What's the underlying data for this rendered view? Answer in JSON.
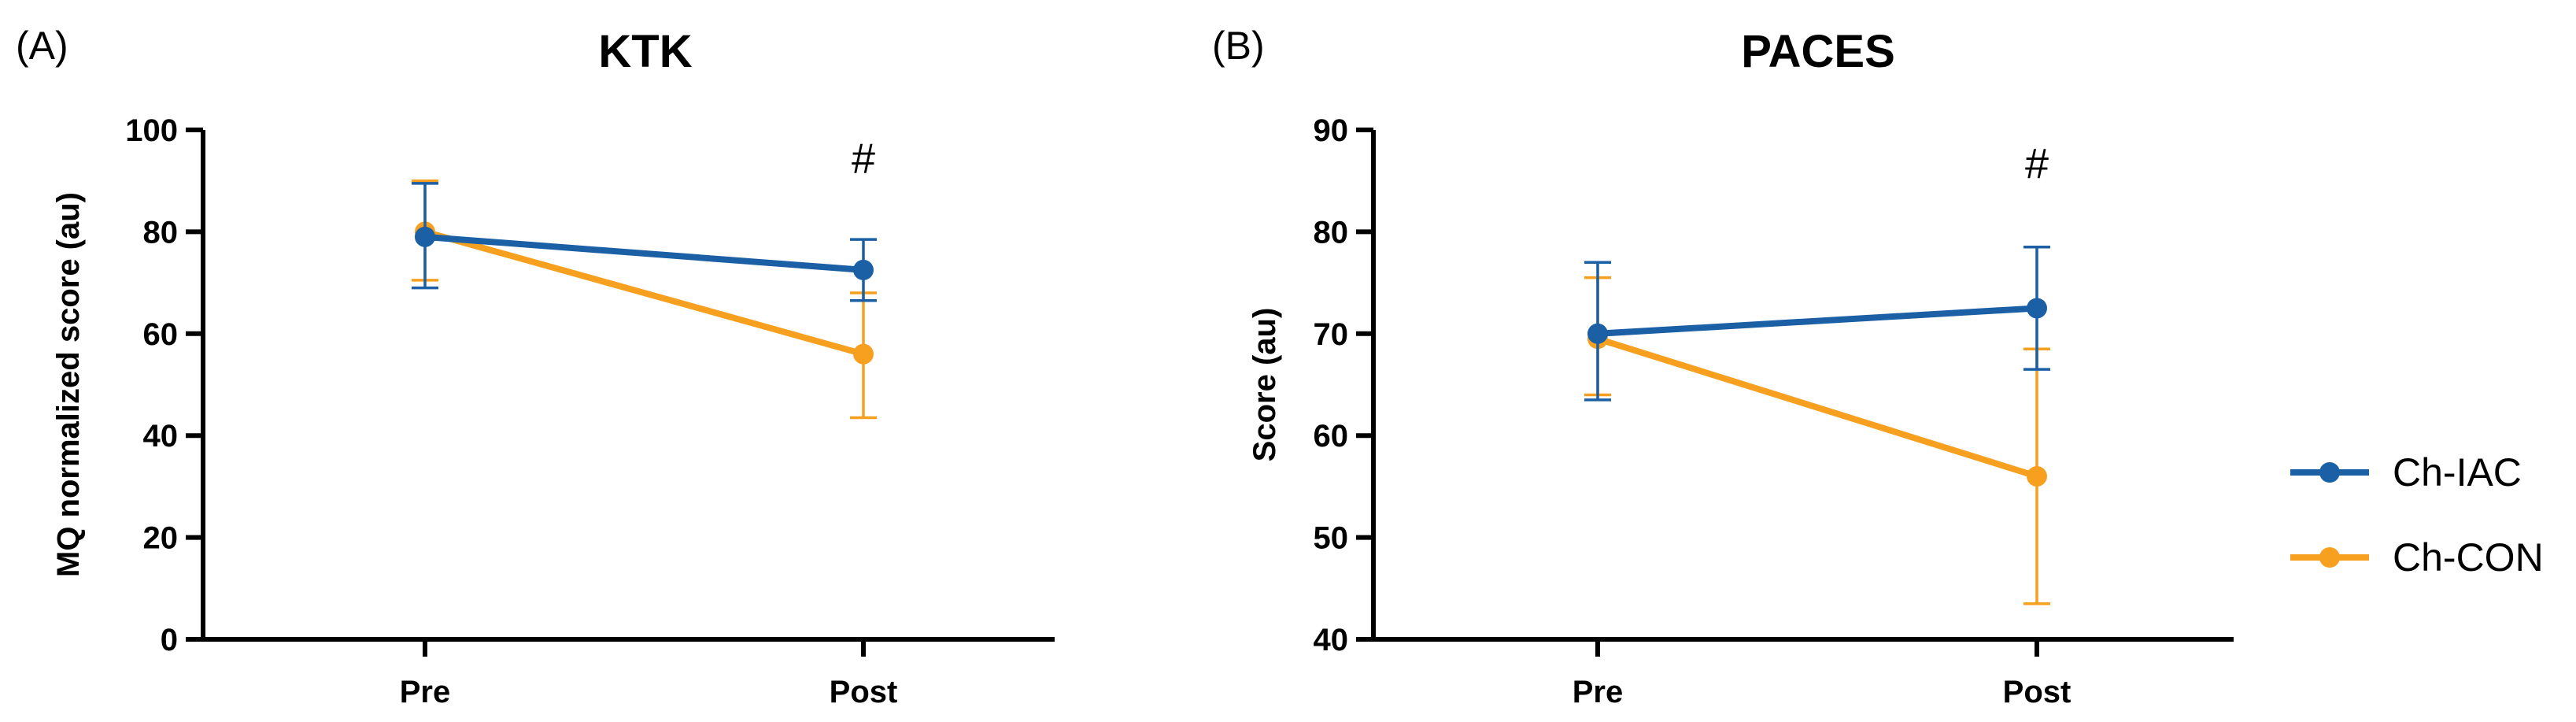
{
  "colors": {
    "Ch-IAC": "#1b5fa5",
    "Ch-CON": "#f7a01f",
    "axis": "#000000"
  },
  "legend": {
    "placement": "right",
    "items": [
      {
        "label": "Ch-IAC",
        "series": "Ch-IAC"
      },
      {
        "label": "Ch-CON",
        "series": "Ch-CON"
      }
    ]
  },
  "chart_data": [
    {
      "panel": "(A)",
      "title": "KTK",
      "type": "line",
      "ylabel": "MQ normalized score (au)",
      "xlabel": "",
      "categories": [
        "Pre",
        "Post"
      ],
      "ylim": [
        0,
        100
      ],
      "yticks": [
        0,
        20,
        40,
        60,
        80,
        100
      ],
      "grid": false,
      "series": [
        {
          "name": "Ch-IAC",
          "values": [
            79,
            72.5
          ],
          "err_low": [
            69,
            66.5
          ],
          "err_high": [
            89.5,
            78.5
          ]
        },
        {
          "name": "Ch-CON",
          "values": [
            80,
            56
          ],
          "err_low": [
            70.5,
            43.5
          ],
          "err_high": [
            90,
            68
          ]
        }
      ],
      "annotations": [
        {
          "text": "#",
          "category": "Post",
          "y": 95
        }
      ]
    },
    {
      "panel": "(B)",
      "title": "PACES",
      "type": "line",
      "ylabel": "Score (au)",
      "xlabel": "",
      "categories": [
        "Pre",
        "Post"
      ],
      "ylim": [
        40,
        90
      ],
      "yticks": [
        40,
        50,
        60,
        70,
        80,
        90
      ],
      "grid": false,
      "series": [
        {
          "name": "Ch-IAC",
          "values": [
            70,
            72.5
          ],
          "err_low": [
            63.5,
            66.5
          ],
          "err_high": [
            77,
            78.5
          ]
        },
        {
          "name": "Ch-CON",
          "values": [
            69.5,
            56
          ],
          "err_low": [
            64,
            43.5
          ],
          "err_high": [
            75.5,
            68.5
          ]
        }
      ],
      "annotations": [
        {
          "text": "#",
          "category": "Post",
          "y": 87
        }
      ]
    }
  ]
}
